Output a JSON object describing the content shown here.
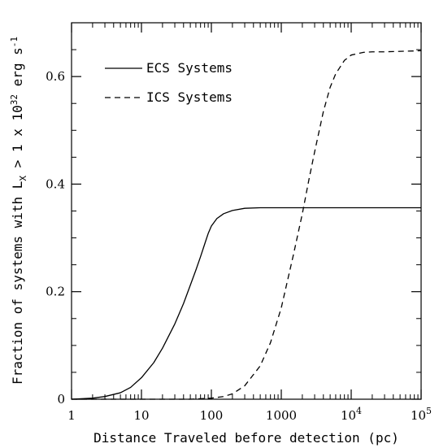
{
  "chart_data": {
    "type": "line",
    "title": "",
    "xlabel": "Distance Traveled before detection (pc)",
    "ylabel": "Fraction of systems with L",
    "ylabel_sub": "X",
    "ylabel_tail": " > 1 x 10",
    "ylabel_exp": "32",
    "ylabel_unit": " erg s",
    "ylabel_unit_exp": "-1",
    "xscale": "log",
    "xlim": [
      1,
      100000
    ],
    "ylim": [
      0,
      0.7
    ],
    "grid": false,
    "legend_position": "top-left",
    "x_ticks": [
      {
        "value": 1,
        "label": "1",
        "exp": ""
      },
      {
        "value": 10,
        "label": "10",
        "exp": ""
      },
      {
        "value": 100,
        "label": "100",
        "exp": ""
      },
      {
        "value": 1000,
        "label": "1000",
        "exp": ""
      },
      {
        "value": 10000,
        "label": "10",
        "exp": "4"
      },
      {
        "value": 100000,
        "label": "10",
        "exp": "5"
      }
    ],
    "y_ticks": [
      {
        "value": 0,
        "label": "0"
      },
      {
        "value": 0.2,
        "label": "0.2"
      },
      {
        "value": 0.4,
        "label": "0.4"
      },
      {
        "value": 0.6,
        "label": "0.6"
      }
    ],
    "series": [
      {
        "name": "ECS Systems",
        "style": "solid",
        "x": [
          1,
          2,
          3,
          5,
          7,
          10,
          15,
          20,
          30,
          40,
          50,
          60,
          70,
          80,
          90,
          100,
          120,
          150,
          200,
          300,
          500,
          1000,
          10000,
          100000
        ],
        "y": [
          0,
          0.002,
          0.005,
          0.012,
          0.022,
          0.04,
          0.068,
          0.095,
          0.14,
          0.178,
          0.212,
          0.24,
          0.265,
          0.288,
          0.308,
          0.322,
          0.336,
          0.345,
          0.351,
          0.355,
          0.356,
          0.356,
          0.356,
          0.356
        ]
      },
      {
        "name": "ICS Systems",
        "style": "dashed",
        "x": [
          1,
          50,
          100,
          150,
          200,
          300,
          500,
          700,
          1000,
          1500,
          2000,
          2500,
          3000,
          4000,
          5000,
          6000,
          8000,
          10000,
          15000,
          20000,
          30000,
          100000
        ],
        "y": [
          0,
          0,
          0.002,
          0.005,
          0.01,
          0.025,
          0.062,
          0.105,
          0.17,
          0.27,
          0.345,
          0.41,
          0.46,
          0.535,
          0.58,
          0.605,
          0.63,
          0.64,
          0.645,
          0.646,
          0.646,
          0.648
        ]
      }
    ]
  }
}
